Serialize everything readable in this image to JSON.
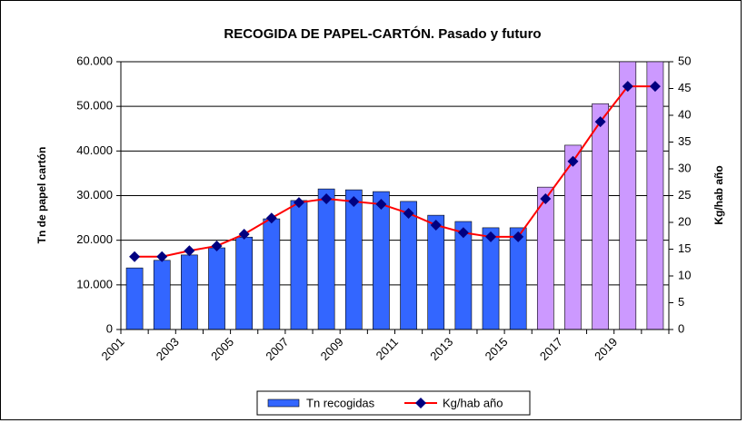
{
  "chart_data": {
    "type": "bar",
    "title": "RECOGIDA DE PAPEL-CARTÓN. Pasado y futuro",
    "y_label": "Tn de papel cartón",
    "y2_label": "Kg/hab año",
    "categories": [
      "2001",
      null,
      "2003",
      null,
      "2005",
      null,
      "2007",
      null,
      "2009",
      null,
      "2011",
      null,
      "2013",
      null,
      "2015",
      null,
      "2017",
      null,
      "2019",
      null
    ],
    "series": [
      {
        "name": "Tn recogidas",
        "type": "bar",
        "color": "#3366ff",
        "colors": [
          "#3366ff",
          "#3366ff",
          "#3366ff",
          "#3366ff",
          "#3366ff",
          "#3366ff",
          "#3366ff",
          "#3366ff",
          "#3366ff",
          "#3366ff",
          "#3366ff",
          "#3366ff",
          "#3366ff",
          "#3366ff",
          "#3366ff",
          "#cc99ff",
          "#cc99ff",
          "#cc99ff",
          "#cc99ff",
          "#cc99ff"
        ],
        "values": [
          13800,
          15500,
          16700,
          18300,
          20700,
          24800,
          28900,
          31500,
          31300,
          30900,
          28700,
          25600,
          24200,
          22800,
          22800,
          31900,
          41300,
          50600,
          60000,
          60000
        ]
      },
      {
        "name": "Kg/hab año",
        "type": "line",
        "axis": "y2",
        "color": "#ff0000",
        "marker_color": "#000080",
        "values": [
          13.6,
          13.6,
          14.7,
          15.6,
          17.8,
          20.8,
          23.7,
          24.4,
          23.9,
          23.4,
          21.7,
          19.5,
          18.1,
          17.3,
          17.3,
          24.4,
          31.4,
          38.8,
          45.4,
          45.4
        ]
      }
    ],
    "ylim": [
      0,
      60000
    ],
    "yticks": [
      0,
      {
        "value": 10000,
        "label": "10.000"
      },
      {
        "value": 20000,
        "label": "20.000"
      },
      {
        "value": 30000,
        "label": "30.000"
      },
      {
        "value": 40000,
        "label": "40.000"
      },
      {
        "value": 50000,
        "label": "50.000"
      },
      {
        "value": 60000,
        "label": "60.000"
      }
    ],
    "y2lim": [
      0,
      50
    ],
    "y2ticks": [
      0,
      5,
      10,
      15,
      20,
      25,
      30,
      35,
      40,
      45,
      50
    ],
    "grid": true,
    "legend": "bottom"
  }
}
